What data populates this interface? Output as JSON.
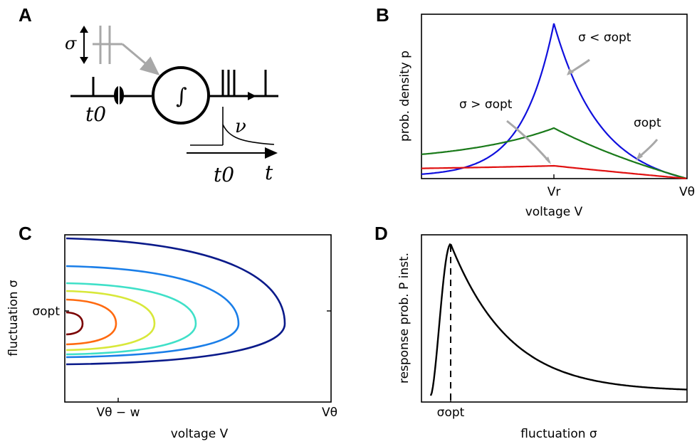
{
  "panels": {
    "a": {
      "label": "A",
      "sigma_symbol": "σ",
      "t0_label": "t0",
      "nu_label": "ν",
      "t_label": "t",
      "integral_symbol": "∫"
    },
    "b": {
      "label": "B",
      "xlabel": "voltage V",
      "ylabel": "prob. density p",
      "xticks": [
        "Vr",
        "Vθ"
      ],
      "annotations": [
        "σ < σopt",
        "σ > σopt",
        "σopt"
      ]
    },
    "c": {
      "label": "C",
      "xlabel": "voltage V",
      "ylabel": "fluctuation σ",
      "xticks": [
        "Vθ − w",
        "Vθ"
      ],
      "yticks": [
        "σopt"
      ]
    },
    "d": {
      "label": "D",
      "xlabel": "fluctuation σ",
      "ylabel": "response prob. P inst.",
      "xticks": [
        "σopt"
      ]
    }
  },
  "colors": {
    "blue": "#1010dd",
    "green": "#1a7a1a",
    "red": "#e01010",
    "gray": "#a8a8a8",
    "contours": [
      "#7a0000",
      "#ff6a10",
      "#d8e83a",
      "#3fe0c8",
      "#1a7ee8",
      "#0a1a8a"
    ]
  },
  "chart_data": [
    {
      "type": "line",
      "panel": "B",
      "xlabel": "voltage V",
      "ylabel": "prob. density p",
      "x_ticks": [
        "Vr",
        "Vθ"
      ],
      "grid": false,
      "series": [
        {
          "shape": "peak at Vr, exponential decay",
          "relative_peak": 1.0,
          "color": "blue"
        },
        {
          "shape": "peak at Vr, moderate",
          "relative_peak": 0.33,
          "color": "green"
        },
        {
          "shape": "nearly flat, small peak at Vr",
          "relative_peak": 0.08,
          "color": "red"
        }
      ]
    },
    {
      "type": "line",
      "panel": "C",
      "xlabel": "voltage V",
      "ylabel": "fluctuation σ",
      "x_ticks": [
        "Vθ − w",
        "Vθ"
      ],
      "y_ticks": [
        "σopt"
      ],
      "contour_count": 6
    },
    {
      "type": "line",
      "panel": "D",
      "xlabel": "fluctuation σ",
      "ylabel": "response prob. P inst.",
      "x_ticks": [
        "σopt"
      ],
      "shape": "sharp rise to maximum at σopt, long decay"
    }
  ]
}
